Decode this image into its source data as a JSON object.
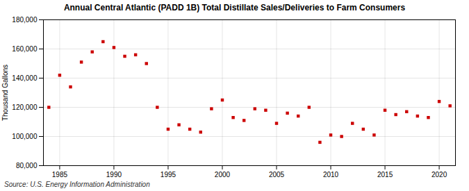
{
  "chart_data": {
    "type": "scatter",
    "title": "Annual Central Atlantic (PADD 1B) Total Distillate Sales/Deliveries to Farm Consumers",
    "ylabel": "Thousand Gallons",
    "annotations": [
      "Source: U.S. Energy Information Administration"
    ],
    "x": [
      1984,
      1985,
      1986,
      1987,
      1988,
      1989,
      1990,
      1991,
      1992,
      1993,
      1994,
      1995,
      1996,
      1997,
      1998,
      1999,
      2000,
      2001,
      2002,
      2003,
      2004,
      2005,
      2006,
      2007,
      2008,
      2009,
      2010,
      2011,
      2012,
      2013,
      2014,
      2015,
      2016,
      2017,
      2018,
      2019,
      2020,
      2021
    ],
    "values": [
      120000,
      142000,
      134000,
      151000,
      158000,
      165000,
      161000,
      155000,
      156000,
      150000,
      120000,
      105000,
      108000,
      105000,
      103000,
      119000,
      125000,
      113000,
      111000,
      119000,
      118000,
      109000,
      116000,
      114000,
      120000,
      96000,
      101000,
      100000,
      109000,
      105000,
      101000,
      118000,
      115000,
      117000,
      114000,
      113000,
      124000,
      121000
    ],
    "color": "#cc0000",
    "marker": "square",
    "xlim": [
      1983.5,
      2021.5
    ],
    "xticks": [
      1985,
      1990,
      1995,
      2000,
      2005,
      2010,
      2015,
      2020
    ],
    "ylim": [
      80000,
      180000
    ],
    "yticks": [
      {
        "value": 80000,
        "label": "80,000"
      },
      {
        "value": 100000,
        "label": "100,000"
      },
      {
        "value": 120000,
        "label": "120,000"
      },
      {
        "value": 140000,
        "label": "140,000"
      },
      {
        "value": 160000,
        "label": "160,000"
      },
      {
        "value": 180000,
        "label": "180,000"
      }
    ],
    "grid": true
  }
}
